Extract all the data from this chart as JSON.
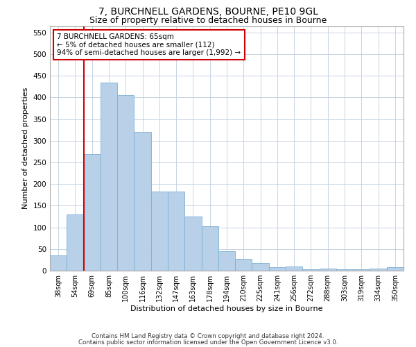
{
  "title1": "7, BURCHNELL GARDENS, BOURNE, PE10 9GL",
  "title2": "Size of property relative to detached houses in Bourne",
  "xlabel": "Distribution of detached houses by size in Bourne",
  "ylabel": "Number of detached properties",
  "categories": [
    "38sqm",
    "54sqm",
    "69sqm",
    "85sqm",
    "100sqm",
    "116sqm",
    "132sqm",
    "147sqm",
    "163sqm",
    "178sqm",
    "194sqm",
    "210sqm",
    "225sqm",
    "241sqm",
    "256sqm",
    "272sqm",
    "288sqm",
    "303sqm",
    "319sqm",
    "334sqm",
    "350sqm"
  ],
  "values": [
    35,
    130,
    270,
    435,
    405,
    320,
    183,
    183,
    125,
    103,
    45,
    28,
    18,
    8,
    10,
    3,
    5,
    3,
    3,
    5,
    8
  ],
  "bar_color": "#b8d0e8",
  "bar_edge_color": "#7bafd4",
  "marker_color": "#cc0000",
  "annotation_text": "7 BURCHNELL GARDENS: 65sqm\n← 5% of detached houses are smaller (112)\n94% of semi-detached houses are larger (1,992) →",
  "annotation_box_color": "#ffffff",
  "annotation_box_edge_color": "#cc0000",
  "ylim": [
    0,
    565
  ],
  "yticks": [
    0,
    50,
    100,
    150,
    200,
    250,
    300,
    350,
    400,
    450,
    500,
    550
  ],
  "footer1": "Contains HM Land Registry data © Crown copyright and database right 2024.",
  "footer2": "Contains public sector information licensed under the Open Government Licence v3.0.",
  "background_color": "#ffffff",
  "grid_color": "#c8d4e4"
}
